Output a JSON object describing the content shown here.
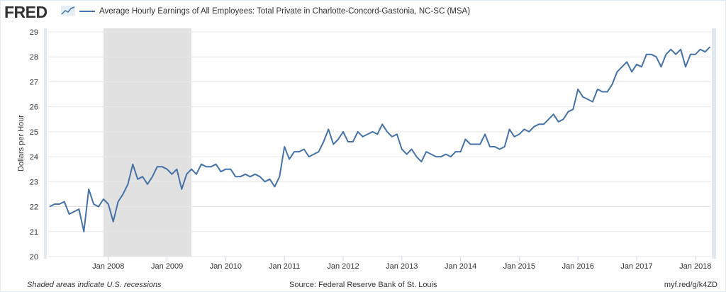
{
  "header": {
    "logo_text": "FRED",
    "series_title": "Average Hourly Earnings of All Employees: Total Private in Charlotte-Concord-Gastonia, NC-SC (MSA)"
  },
  "footer": {
    "note": "Shaded areas indicate U.S. recessions",
    "source": "Source: Federal Reserve Bank of St. Louis",
    "link": "myf.red/g/k4ZD"
  },
  "colors": {
    "line": "#4572a7",
    "recession": "#e1e1e1",
    "grid": "#e6e6e6"
  },
  "chart_data": {
    "type": "line",
    "title": "Average Hourly Earnings of All Employees: Total Private in Charlotte-Concord-Gastonia, NC-SC (MSA)",
    "xlabel": "",
    "ylabel": "Dollars per Hour",
    "ylim": [
      20,
      29
    ],
    "yticks": [
      "20",
      "21",
      "22",
      "23",
      "24",
      "25",
      "26",
      "27",
      "28",
      "29"
    ],
    "xticks": [
      "Jan 2008",
      "Jan 2009",
      "Jan 2010",
      "Jan 2011",
      "Jan 2012",
      "Jan 2013",
      "Jan 2014",
      "Jan 2015",
      "Jan 2016",
      "Jan 2017",
      "Jan 2018"
    ],
    "start": "2007-01",
    "frequency": "monthly",
    "recessions": [
      {
        "start": "2007-12",
        "end": "2009-06"
      }
    ],
    "grid": true,
    "series": [
      {
        "name": "Average Hourly Earnings of All Employees: Total Private in Charlotte-Concord-Gastonia, NC-SC (MSA)",
        "values": [
          22.0,
          22.1,
          22.1,
          22.2,
          21.7,
          21.8,
          21.9,
          21.0,
          22.7,
          22.1,
          22.0,
          22.3,
          22.1,
          21.4,
          22.2,
          22.5,
          22.9,
          23.7,
          23.1,
          23.2,
          22.9,
          23.2,
          23.6,
          23.6,
          23.5,
          23.3,
          23.5,
          22.7,
          23.3,
          23.5,
          23.3,
          23.7,
          23.6,
          23.6,
          23.7,
          23.4,
          23.5,
          23.5,
          23.2,
          23.2,
          23.3,
          23.2,
          23.3,
          23.2,
          23.0,
          23.1,
          22.8,
          23.2,
          24.4,
          23.9,
          24.2,
          24.2,
          24.3,
          24.0,
          24.1,
          24.2,
          24.6,
          25.1,
          24.5,
          24.7,
          25.0,
          24.6,
          24.6,
          25.0,
          24.8,
          24.9,
          25.0,
          24.9,
          25.3,
          25.0,
          24.8,
          24.9,
          24.3,
          24.1,
          24.3,
          24.0,
          23.8,
          24.2,
          24.1,
          24.0,
          24.0,
          24.1,
          24.0,
          24.2,
          24.2,
          24.7,
          24.5,
          24.5,
          24.5,
          24.9,
          24.4,
          24.4,
          24.3,
          24.4,
          25.1,
          24.8,
          24.9,
          25.1,
          25.0,
          25.2,
          25.3,
          25.3,
          25.5,
          25.7,
          25.4,
          25.5,
          25.8,
          25.9,
          26.7,
          26.4,
          26.3,
          26.2,
          26.7,
          26.6,
          26.6,
          26.9,
          27.4,
          27.6,
          27.8,
          27.4,
          27.7,
          27.6,
          28.1,
          28.1,
          28.0,
          27.6,
          28.1,
          28.3,
          28.1,
          28.3,
          27.6,
          28.1,
          28.1,
          28.3,
          28.2,
          28.4
        ]
      }
    ]
  }
}
